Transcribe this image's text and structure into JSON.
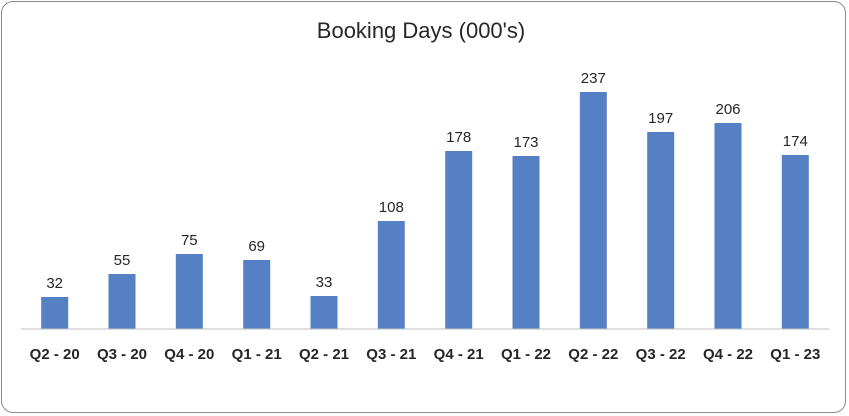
{
  "chart_data": {
    "type": "bar",
    "title": "Booking Days (000's)",
    "categories": [
      "Q2 - 20",
      "Q3 - 20",
      "Q4 - 20",
      "Q1 - 21",
      "Q2 - 21",
      "Q3 - 21",
      "Q4 - 21",
      "Q1 - 22",
      "Q2 - 22",
      "Q3 - 22",
      "Q4 - 22",
      "Q1 - 23"
    ],
    "values": [
      32,
      55,
      75,
      69,
      33,
      108,
      178,
      173,
      237,
      197,
      206,
      174
    ],
    "data_labels": [
      "32",
      "55",
      "75",
      "69",
      "33",
      "108",
      "178",
      "173",
      "237",
      "197",
      "206",
      "174"
    ],
    "xlabel": "",
    "ylabel": "",
    "ylim": [
      0,
      250
    ],
    "grid": false,
    "legend": "none",
    "bar_color": "#5580C4"
  }
}
